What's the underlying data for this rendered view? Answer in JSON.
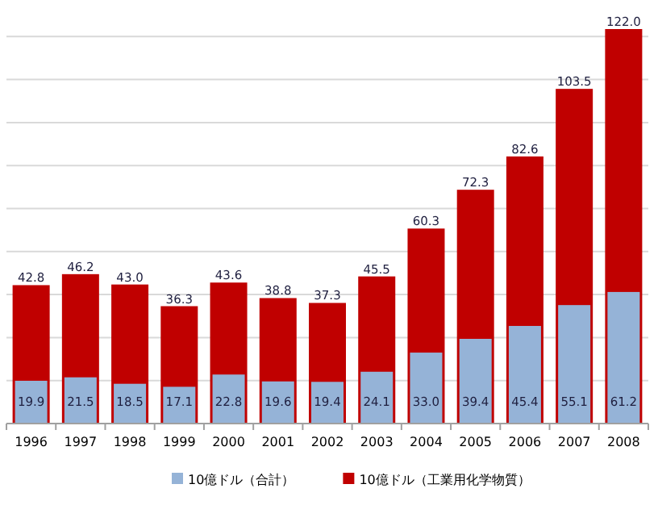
{
  "chart_data": {
    "type": "bar",
    "categories": [
      "1996",
      "1997",
      "1998",
      "1999",
      "2000",
      "2001",
      "2002",
      "2003",
      "2004",
      "2005",
      "2006",
      "2007",
      "2008"
    ],
    "series": [
      {
        "name": "10億ドル（合計）",
        "color": "#95b3d7",
        "values": [
          19.9,
          21.5,
          18.5,
          17.1,
          22.8,
          19.6,
          19.4,
          24.1,
          33.0,
          39.4,
          45.4,
          55.1,
          61.2
        ],
        "value_labels": [
          "19.9",
          "21.5",
          "18.5",
          "17.1",
          "22.8",
          "19.6",
          "19.4",
          "24.1",
          "33.0",
          "39.4",
          "45.4",
          "55.1",
          "61.2"
        ]
      },
      {
        "name": "10億ドル（工業用化学物質）",
        "color": "#c00000",
        "axis": "y2",
        "values": [
          42.8,
          46.2,
          43.0,
          36.3,
          43.6,
          38.8,
          37.3,
          45.5,
          60.3,
          72.3,
          82.6,
          103.5,
          122.0
        ],
        "value_labels": [
          "42.8",
          "46.2",
          "43.0",
          "36.3",
          "43.6",
          "38.8",
          "37.3",
          "45.5",
          "60.3",
          "72.3",
          "82.6",
          "103.5",
          "122.0"
        ]
      }
    ],
    "ylim": [
      0,
      185
    ],
    "yticks": [
      {
        "value": 0,
        "label": null
      },
      {
        "value": 20,
        "label": null
      },
      {
        "value": 40,
        "label": null
      },
      {
        "value": 60,
        "label": null
      },
      {
        "value": 80,
        "label": null
      },
      {
        "value": 100,
        "label": null
      },
      {
        "value": 120,
        "label": null
      },
      {
        "value": 140,
        "label": null
      },
      {
        "value": 160,
        "label": null
      },
      {
        "value": 180,
        "label": null
      }
    ],
    "y2lim": [
      0,
      123
    ],
    "grid": "y",
    "legend": "bottom"
  }
}
